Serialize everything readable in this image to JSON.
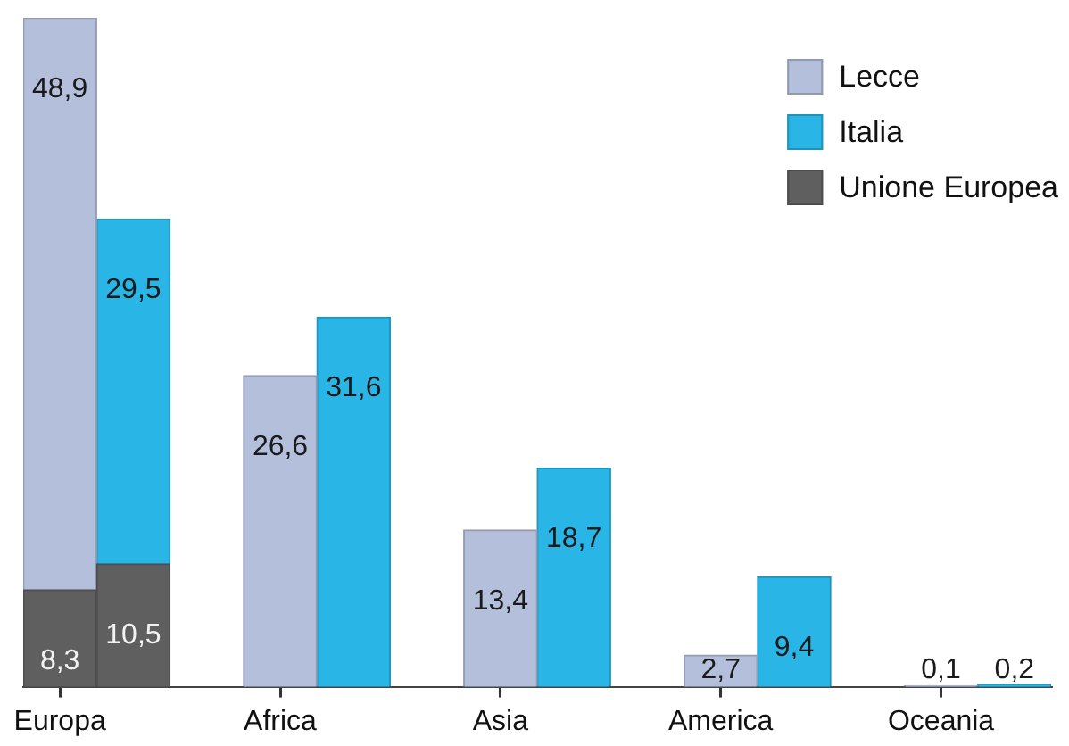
{
  "chart_data": {
    "type": "bar",
    "stacked": true,
    "legend": "top right",
    "ylim": [
      0,
      57.2
    ],
    "categories": [
      "Europa",
      null,
      null,
      "Africa",
      null,
      null,
      "Asia",
      null,
      null,
      "America",
      null,
      null,
      "Oceania",
      null
    ],
    "series": [
      {
        "name": "Unione Europea",
        "color": "#5f5f5f",
        "values": [
          8.3,
          10.5,
          null,
          null,
          null,
          null,
          null,
          null,
          null,
          null,
          null,
          null,
          null,
          null
        ],
        "value_labels": [
          "8,3",
          "10,5",
          null,
          null,
          null,
          null,
          null,
          null,
          null,
          null,
          null,
          null,
          null,
          null
        ]
      },
      {
        "name": "Lecce",
        "color": "#b4bfdb",
        "values": [
          48.9,
          null,
          null,
          26.6,
          null,
          null,
          13.4,
          null,
          null,
          2.7,
          null,
          null,
          0.1,
          null
        ],
        "value_labels": [
          "48,9",
          null,
          null,
          "26,6",
          null,
          null,
          "13,4",
          null,
          null,
          "2,7",
          null,
          null,
          "0,1",
          null
        ]
      },
      {
        "name": "Italia",
        "color": "#29b6e6",
        "values": [
          null,
          29.5,
          null,
          null,
          31.6,
          null,
          null,
          18.7,
          null,
          null,
          9.4,
          null,
          null,
          0.2
        ],
        "value_labels": [
          null,
          "29,5",
          null,
          null,
          "31,6",
          null,
          null,
          "18,7",
          null,
          null,
          "9,4",
          null,
          null,
          "0,2"
        ]
      }
    ]
  }
}
